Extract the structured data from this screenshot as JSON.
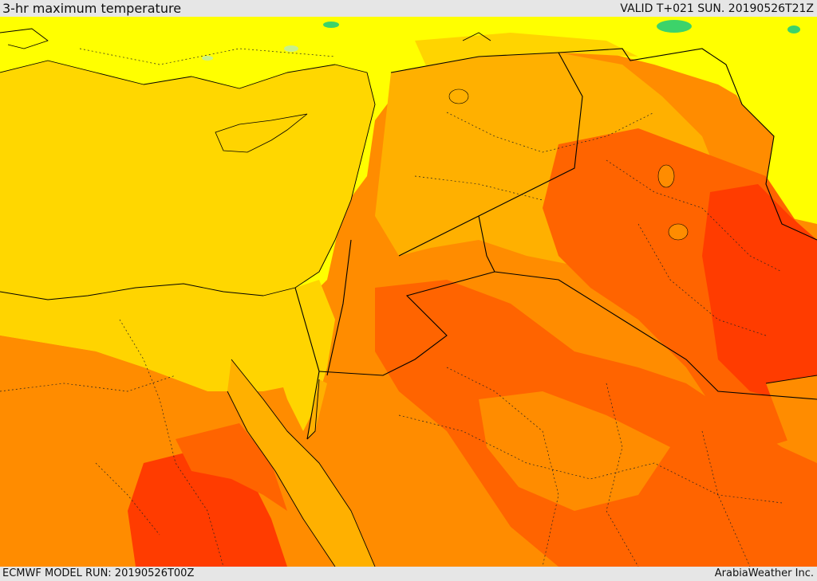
{
  "header": {
    "title": "3-hr maximum temperature",
    "valid": "VALID T+021 SUN. 20190526T21Z"
  },
  "footer": {
    "model_run": "ECMWF MODEL RUN: 20190526T00Z",
    "credit": "ArabiaWeather Inc."
  },
  "palette": {
    "sea": "#ffd700",
    "cool": "#c8f08c",
    "mild": "#ffff00",
    "warm": "#ffd400",
    "hot": "#ffb000",
    "hotter": "#ff8c00",
    "very_hot": "#ff6400",
    "extreme": "#ff3c00",
    "green_patch": "#3cd36a",
    "border": "#000000"
  }
}
